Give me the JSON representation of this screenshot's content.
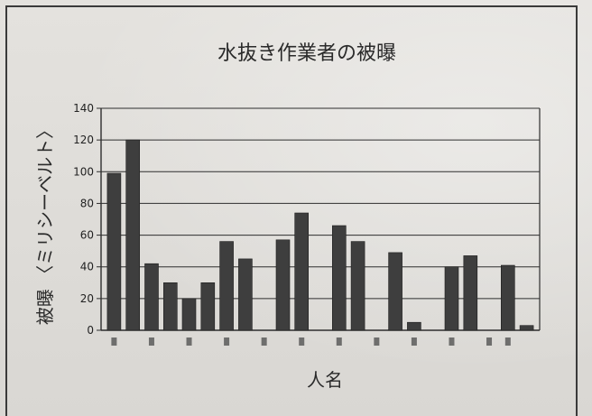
{
  "chart_data": {
    "type": "bar",
    "title": "水抜き作業者の被曝",
    "xlabel": "人名",
    "ylabel": "被曝 〈ミリシーベルト〉",
    "ylim": [
      0,
      140
    ],
    "yticks": [
      0,
      20,
      40,
      60,
      80,
      100,
      120,
      140
    ],
    "grid": true,
    "bar_color": "#3e3e3e",
    "values": [
      99,
      120,
      42,
      30,
      20,
      30,
      56,
      45,
      57,
      74,
      66,
      56,
      49,
      5,
      40,
      47,
      41,
      3
    ],
    "x_slots": [
      0,
      1,
      2,
      3,
      4,
      5,
      6,
      7,
      9,
      10,
      12,
      13,
      15,
      16,
      18,
      19,
      21,
      22
    ]
  }
}
